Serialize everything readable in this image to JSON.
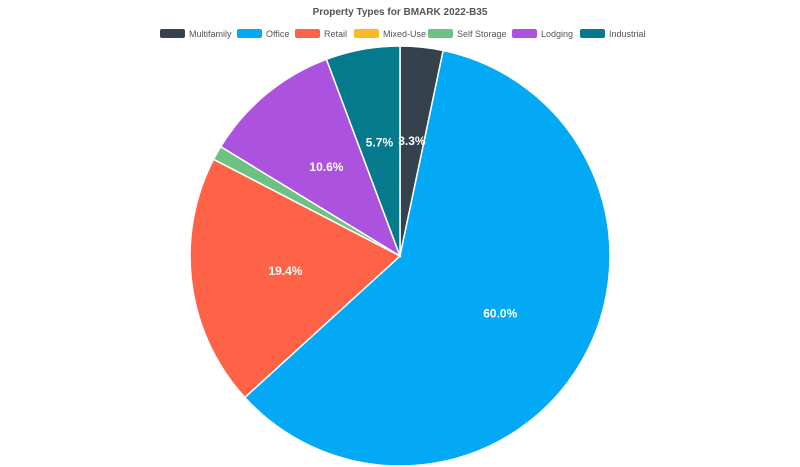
{
  "chart_data": {
    "type": "pie",
    "title": "Property Types for BMARK 2022-B35",
    "legend_position": "top",
    "categories": [
      "Multifamily",
      "Office",
      "Retail",
      "Mixed-Use",
      "Self Storage",
      "Lodging",
      "Industrial"
    ],
    "values": [
      3.3,
      60.0,
      19.4,
      0.0,
      1.1,
      10.6,
      5.7
    ],
    "colors": [
      "#36414e",
      "#03a9f4",
      "#fe6347",
      "#fdb827",
      "#6dc183",
      "#ab52de",
      "#047a8c"
    ],
    "data_labels": [
      "3.3%",
      "60.0%",
      "19.4%",
      "",
      "",
      "10.6%",
      "5.7%"
    ]
  }
}
